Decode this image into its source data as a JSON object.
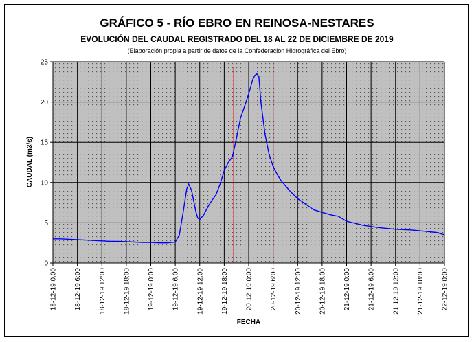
{
  "chart_data": {
    "type": "line",
    "title": "GRÁFICO 5 - RÍO EBRO EN REINOSA-NESTARES",
    "subtitle": "EVOLUCIÓN DEL CAUDAL REGISTRADO DEL 18 AL 22 DE DICIEMBRE DE 2019",
    "note": "(Elaboración propia a partir de datos de la Confederación Hidrográfica del Ebro)",
    "xlabel": "FECHA",
    "ylabel": "CAUDAL (m3/s)",
    "ylim": [
      0,
      25
    ],
    "yticks": [
      0,
      5,
      10,
      15,
      20,
      25
    ],
    "xlim_hours": [
      0,
      96
    ],
    "x_tick_labels": [
      "18-12-19 0:00",
      "18-12-19 6:00",
      "18-12-19 12:00",
      "18-12-19 18:00",
      "19-12-19 0:00",
      "19-12-19 6:00",
      "19-12-19 12:00",
      "19-12-19 18:00",
      "20-12-19 0:00",
      "20-12-19 6:00",
      "20-12-19 12:00",
      "20-12-19 18:00",
      "21-12-19 0:00",
      "21-12-19 6:00",
      "21-12-19 12:00",
      "21-12-19 18:00",
      "22-12-19 0:00"
    ],
    "grid": true,
    "plot_background": "#c0c0c0",
    "line_color": "#0000ff",
    "marker_color": "#ff0000",
    "markers_hours": [
      44.3,
      54.0
    ],
    "series": [
      {
        "x_hours": [
          0,
          2,
          4,
          6,
          8,
          10,
          12,
          14,
          16,
          18,
          20,
          22,
          24,
          26,
          28,
          30,
          31,
          32,
          32.8,
          33.3,
          34,
          35,
          35.5,
          36,
          37,
          38,
          39,
          40,
          41,
          42,
          43,
          44,
          45,
          46,
          47,
          48,
          49,
          49.5,
          50,
          50.5,
          51,
          52,
          53,
          54,
          55,
          56,
          58,
          60,
          62,
          64,
          66,
          68,
          70,
          72,
          76,
          80,
          84,
          88,
          90,
          92,
          94,
          96
        ],
        "values": [
          3.0,
          3.0,
          2.95,
          2.9,
          2.85,
          2.8,
          2.75,
          2.7,
          2.7,
          2.65,
          2.6,
          2.55,
          2.55,
          2.5,
          2.5,
          2.6,
          3.5,
          6.5,
          9.2,
          9.8,
          9.0,
          6.5,
          5.6,
          5.4,
          6.0,
          7.0,
          7.8,
          8.5,
          9.8,
          11.5,
          12.5,
          13.2,
          15.5,
          18.0,
          19.5,
          21.0,
          22.8,
          23.3,
          23.5,
          23.2,
          20.0,
          16.0,
          13.5,
          12.0,
          11.0,
          10.2,
          9.0,
          8.0,
          7.3,
          6.6,
          6.3,
          6.0,
          5.8,
          5.2,
          4.7,
          4.4,
          4.2,
          4.1,
          4.0,
          3.9,
          3.8,
          3.5
        ]
      }
    ]
  }
}
